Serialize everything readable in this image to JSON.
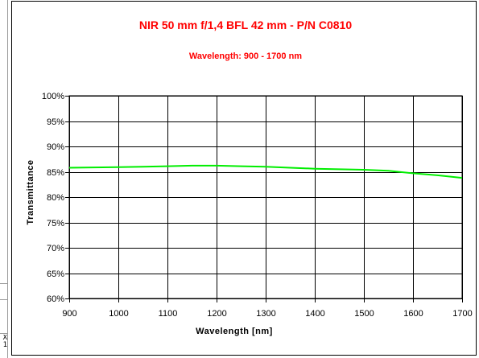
{
  "left_fragment": {
    "line1": "X",
    "line2": "1"
  },
  "chart_data": {
    "type": "line",
    "title": "NIR 50 mm f/1,4 BFL  42 mm - P/N C0810",
    "subtitle": "Wavelength: 900 - 1700 nm",
    "xlabel": "Wavelength [nm]",
    "ylabel": "Transmittance",
    "xlim": [
      900,
      1700
    ],
    "ylim": [
      60,
      100
    ],
    "x_ticks": [
      900,
      1000,
      1100,
      1200,
      1300,
      1400,
      1500,
      1600,
      1700
    ],
    "x_tick_labels": [
      "900",
      "1000",
      "1100",
      "1200",
      "1300",
      "1400",
      "1500",
      "1600",
      "1700"
    ],
    "y_ticks": [
      60,
      65,
      70,
      75,
      80,
      85,
      90,
      95,
      100
    ],
    "y_tick_labels": [
      "60%",
      "65%",
      "70%",
      "75%",
      "80%",
      "85%",
      "90%",
      "95%",
      "100%"
    ],
    "grid": true,
    "legend": "none",
    "series": [
      {
        "color": "#00ee00",
        "x": [
          900,
          950,
          1000,
          1050,
          1100,
          1150,
          1200,
          1250,
          1300,
          1350,
          1400,
          1450,
          1500,
          1550,
          1600,
          1650,
          1700
        ],
        "y": [
          85.8,
          85.85,
          85.9,
          86.0,
          86.1,
          86.2,
          86.2,
          86.1,
          86.0,
          85.8,
          85.6,
          85.5,
          85.4,
          85.2,
          84.7,
          84.3,
          83.8
        ]
      }
    ]
  }
}
